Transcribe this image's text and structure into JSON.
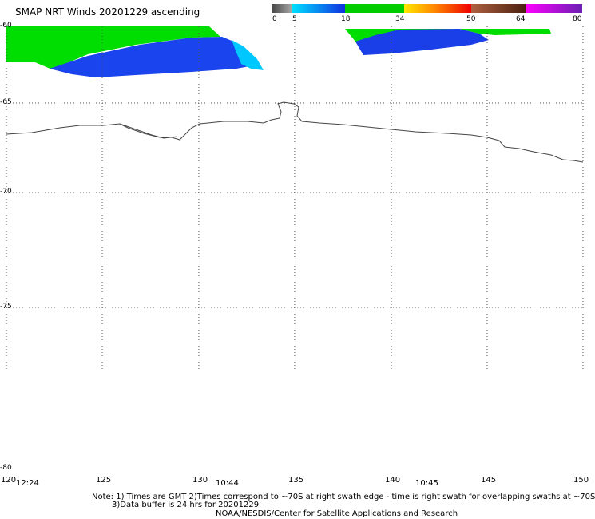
{
  "title": "SMAP NRT Winds 20201229 ascending",
  "colors": {
    "gray_dark": "#555555",
    "gray": "#8a8a8a",
    "cyan": "#00d8ff",
    "blue": "#1a4ef0",
    "navy": "#0a2ad0",
    "green": "#00dd00",
    "yellow": "#ffd800",
    "orange": "#ff7800",
    "red": "#ee0000",
    "brown": "#8b4a2a",
    "magenta": "#e000e0",
    "purple": "#7a20c0",
    "grid": "#555555",
    "coast": "#444444"
  },
  "colorbar": {
    "labels": [
      "0",
      "5",
      "18",
      "34",
      "50",
      "64",
      "80"
    ],
    "values": [
      0,
      5,
      18,
      34,
      50,
      64,
      80
    ]
  },
  "map": {
    "lon_range": [
      120,
      150
    ],
    "lat_range": [
      -60,
      -80
    ],
    "lat_ticks": [
      "-60",
      "-65",
      "-70",
      "-75",
      "-80"
    ],
    "lon_ticks": [
      "120",
      "125",
      "130",
      "135",
      "140",
      "145",
      "150"
    ],
    "time_labels": [
      "12:24",
      "10:44",
      "10:45"
    ]
  },
  "notes": {
    "line1": "Note: 1) Times are GMT 2)Times correspond to ~70S at right swath edge - time is right swath for overlapping swaths at ~70S",
    "line2": "3)Data buffer is 24 hrs for 20201229",
    "line3": "NOAA/NESDIS/Center for Satellite Applications and Research"
  }
}
